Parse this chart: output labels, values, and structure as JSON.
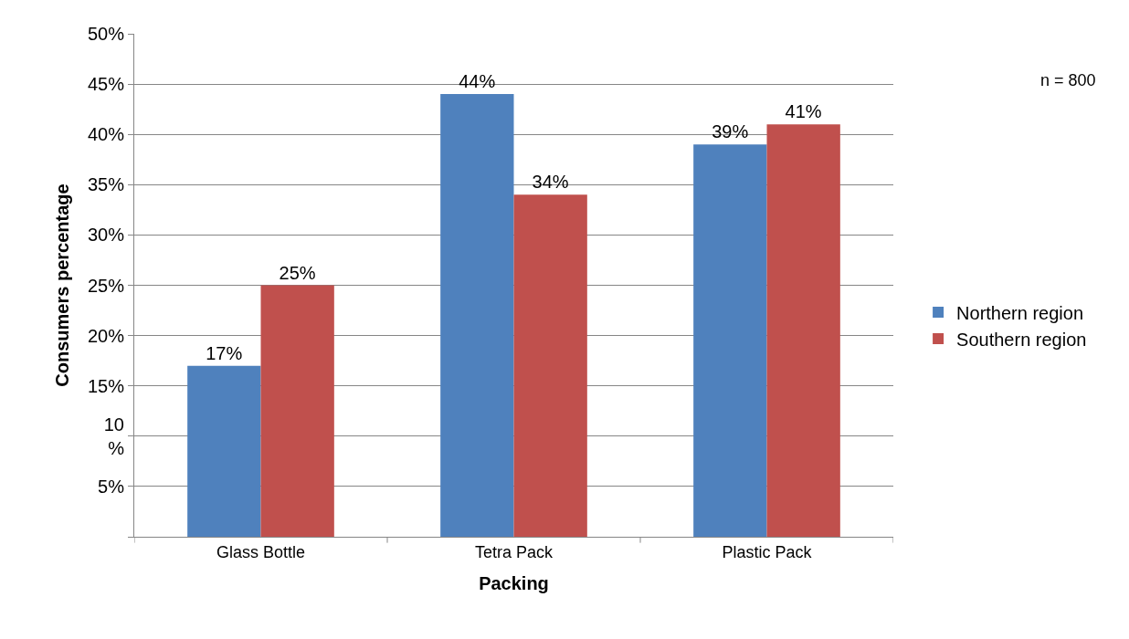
{
  "chart_data": {
    "type": "bar",
    "xlabel": "Packing",
    "ylabel": "Consumers percentage",
    "categories": [
      "Glass Bottle",
      "Tetra Pack",
      "Plastic Pack"
    ],
    "series": [
      {
        "name": "Northern region",
        "color": "#4f81bd",
        "values": [
          17,
          44,
          39
        ]
      },
      {
        "name": "Southern region",
        "color": "#c0504d",
        "values": [
          25,
          34,
          41
        ]
      }
    ],
    "ylim": [
      0,
      50
    ],
    "yticks": [
      {
        "value": 0,
        "label": null
      },
      {
        "value": 5,
        "label": "5%"
      },
      {
        "value": 10,
        "label": "10\n%"
      },
      {
        "value": 15,
        "label": "15%"
      },
      {
        "value": 20,
        "label": "20%"
      },
      {
        "value": 25,
        "label": "25%"
      },
      {
        "value": 30,
        "label": "30%"
      },
      {
        "value": 35,
        "label": "35%"
      },
      {
        "value": 40,
        "label": "40%"
      },
      {
        "value": 45,
        "label": "45%"
      },
      {
        "value": 50,
        "label": "50%"
      }
    ],
    "value_labels": [
      [
        "17%",
        "44%",
        "39%"
      ],
      [
        "25%",
        "34%",
        "41%"
      ]
    ],
    "grid": "y",
    "legend": "right",
    "annotations": [
      "n = 800"
    ]
  }
}
